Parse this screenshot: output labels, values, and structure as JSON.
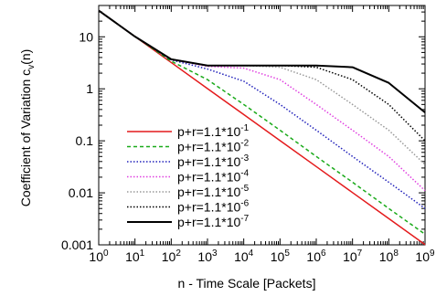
{
  "chart_data": {
    "type": "line",
    "title": "",
    "xlabel": "n - Time Scale [Packets]",
    "ylabel": {
      "main": "Coefficient of Variation c",
      "sub": "v",
      "suffix": "(n)"
    },
    "x_scale": "log",
    "y_scale": "log",
    "xlim": [
      1,
      1000000000
    ],
    "ylim": [
      0.001,
      40
    ],
    "grid": false,
    "legend_position": "bottom-left",
    "x_ticks": [
      {
        "value": 1,
        "base": "10",
        "exp": "0"
      },
      {
        "value": 10,
        "base": "10",
        "exp": "1"
      },
      {
        "value": 100,
        "base": "10",
        "exp": "2"
      },
      {
        "value": 1000,
        "base": "10",
        "exp": "3"
      },
      {
        "value": 10000,
        "base": "10",
        "exp": "4"
      },
      {
        "value": 100000,
        "base": "10",
        "exp": "5"
      },
      {
        "value": 1000000,
        "base": "10",
        "exp": "6"
      },
      {
        "value": 10000000,
        "base": "10",
        "exp": "7"
      },
      {
        "value": 100000000,
        "base": "10",
        "exp": "8"
      },
      {
        "value": 1000000000,
        "base": "10",
        "exp": "9"
      }
    ],
    "y_ticks": [
      {
        "value": 0.001,
        "label": "0.001"
      },
      {
        "value": 0.01,
        "label": "0.01"
      },
      {
        "value": 0.1,
        "label": "0.1"
      },
      {
        "value": 1,
        "label": "1"
      },
      {
        "value": 10,
        "label": "10"
      }
    ],
    "series": [
      {
        "name": "p+r=1.1*10",
        "exp": "-1",
        "color": "#e41a1c",
        "dash": "solid",
        "width": 1.5,
        "points": [
          [
            1,
            32
          ],
          [
            10,
            10.1
          ],
          [
            100,
            3.2
          ],
          [
            1000,
            1.01
          ],
          [
            10000,
            0.32
          ],
          [
            100000,
            0.101
          ],
          [
            1000000,
            0.032
          ],
          [
            10000000,
            0.0101
          ],
          [
            100000000,
            0.0032
          ],
          [
            1000000000,
            0.00101
          ]
        ]
      },
      {
        "name": "p+r=1.1*10",
        "exp": "-2",
        "color": "#1aaa1a",
        "dash": "dash",
        "width": 1.5,
        "points": [
          [
            1,
            32
          ],
          [
            10,
            10.1
          ],
          [
            100,
            3.4
          ],
          [
            1000,
            1.5
          ],
          [
            10000,
            0.5
          ],
          [
            100000,
            0.16
          ],
          [
            1000000,
            0.05
          ],
          [
            10000000,
            0.016
          ],
          [
            100000000,
            0.005
          ],
          [
            1000000000,
            0.0016
          ]
        ]
      },
      {
        "name": "p+r=1.1*10",
        "exp": "-3",
        "color": "#2222bb",
        "dash": "dot",
        "width": 1.5,
        "points": [
          [
            1,
            32
          ],
          [
            10,
            10.1
          ],
          [
            100,
            3.6
          ],
          [
            1000,
            2.4
          ],
          [
            10000,
            1.4
          ],
          [
            100000,
            0.5
          ],
          [
            1000000,
            0.16
          ],
          [
            10000000,
            0.05
          ],
          [
            100000000,
            0.016
          ],
          [
            1000000000,
            0.005
          ]
        ]
      },
      {
        "name": "p+r=1.1*10",
        "exp": "-4",
        "color": "#e040e0",
        "dash": "dot",
        "width": 1.5,
        "points": [
          [
            1,
            32
          ],
          [
            10,
            10.1
          ],
          [
            100,
            3.7
          ],
          [
            1000,
            2.7
          ],
          [
            10000,
            2.5
          ],
          [
            100000,
            1.5
          ],
          [
            1000000,
            0.5
          ],
          [
            10000000,
            0.16
          ],
          [
            100000000,
            0.05
          ],
          [
            1000000000,
            0.011
          ]
        ]
      },
      {
        "name": "p+r=1.1*10",
        "exp": "-5",
        "color": "#999999",
        "dash": "dot",
        "width": 1.5,
        "points": [
          [
            1,
            32
          ],
          [
            10,
            10.1
          ],
          [
            100,
            3.7
          ],
          [
            1000,
            2.8
          ],
          [
            10000,
            2.8
          ],
          [
            100000,
            2.6
          ],
          [
            1000000,
            1.5
          ],
          [
            10000000,
            0.5
          ],
          [
            100000000,
            0.16
          ],
          [
            1000000000,
            0.035
          ]
        ]
      },
      {
        "name": "p+r=1.1*10",
        "exp": "-6",
        "color": "#000000",
        "dash": "dot",
        "width": 1.5,
        "points": [
          [
            1,
            32
          ],
          [
            10,
            10.1
          ],
          [
            100,
            3.7
          ],
          [
            1000,
            2.8
          ],
          [
            10000,
            2.8
          ],
          [
            100000,
            2.8
          ],
          [
            1000000,
            2.6
          ],
          [
            10000000,
            1.5
          ],
          [
            100000000,
            0.5
          ],
          [
            1000000000,
            0.1
          ]
        ]
      },
      {
        "name": "p+r=1.1*10",
        "exp": "-7",
        "color": "#000000",
        "dash": "solid",
        "width": 2,
        "points": [
          [
            1,
            32
          ],
          [
            10,
            10.1
          ],
          [
            100,
            3.7
          ],
          [
            1000,
            2.8
          ],
          [
            10000,
            2.8
          ],
          [
            100000,
            2.8
          ],
          [
            1000000,
            2.8
          ],
          [
            10000000,
            2.6
          ],
          [
            100000000,
            1.3
          ],
          [
            1000000000,
            0.35
          ]
        ]
      }
    ]
  }
}
